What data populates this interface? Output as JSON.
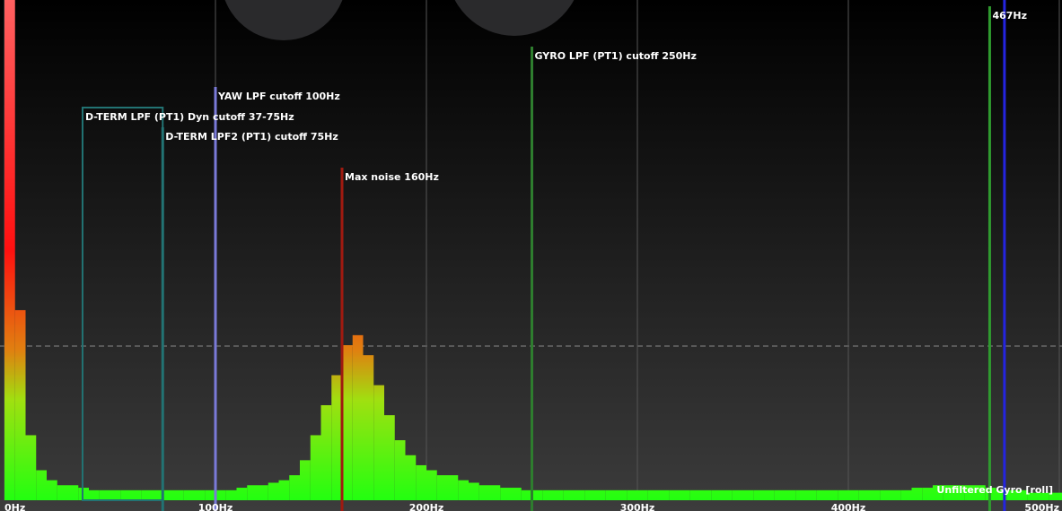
{
  "chart_data": {
    "type": "spectrum",
    "legend": "Unfiltered Gyro [roll]",
    "xlim": [
      0,
      500
    ],
    "ylim": [
      0,
      100
    ],
    "xticks": [
      {
        "value": 0,
        "label": "0Hz"
      },
      {
        "value": 100,
        "label": "100Hz"
      },
      {
        "value": 200,
        "label": "200Hz"
      },
      {
        "value": 300,
        "label": "300Hz"
      },
      {
        "value": 400,
        "label": "400Hz"
      },
      {
        "value": 500,
        "label": "500Hz"
      }
    ],
    "x": [
      0,
      5,
      10,
      15,
      20,
      25,
      30,
      35,
      40,
      45,
      50,
      55,
      60,
      65,
      70,
      75,
      80,
      85,
      90,
      95,
      100,
      105,
      110,
      115,
      120,
      125,
      130,
      135,
      140,
      145,
      150,
      155,
      160,
      165,
      170,
      175,
      180,
      185,
      190,
      195,
      200,
      205,
      210,
      215,
      220,
      225,
      230,
      235,
      240,
      245,
      250,
      255,
      260,
      265,
      270,
      275,
      280,
      285,
      290,
      295,
      300,
      305,
      310,
      315,
      320,
      325,
      330,
      335,
      340,
      345,
      350,
      355,
      360,
      365,
      370,
      375,
      380,
      385,
      390,
      395,
      400,
      405,
      410,
      415,
      420,
      425,
      430,
      435,
      440,
      445,
      450,
      455,
      460,
      465,
      470,
      475,
      480,
      485,
      490,
      495,
      500
    ],
    "values": [
      100,
      38,
      13,
      6,
      4,
      3,
      3,
      2.5,
      2,
      2,
      2,
      2,
      2,
      2,
      2,
      2,
      2,
      2,
      2,
      2,
      2,
      2,
      2.5,
      3,
      3,
      3.5,
      4,
      5,
      8,
      13,
      19,
      25,
      31,
      33,
      29,
      23,
      17,
      12,
      9,
      7,
      6,
      5,
      5,
      4,
      3.5,
      3,
      3,
      2.5,
      2.5,
      2,
      2,
      2,
      2,
      2,
      2,
      2,
      2,
      2,
      2,
      2,
      2,
      2,
      2,
      2,
      2,
      2,
      2,
      2,
      2,
      2,
      2,
      2,
      2,
      2,
      2,
      2,
      2,
      2,
      2,
      2,
      2,
      2,
      2,
      2,
      2,
      2,
      2.5,
      2.5,
      3,
      3,
      3,
      3,
      3,
      2.5,
      2,
      2,
      2,
      1.5,
      1.5,
      1.5,
      1.5
    ],
    "markers": [
      {
        "label": "GYRO LPF (PT1) cutoff 250Hz",
        "x": 250,
        "color": "#2e7d2e"
      },
      {
        "label": "YAW LPF cutoff 100Hz",
        "x": 100,
        "color": "#7a7ad8"
      },
      {
        "label": "D-TERM LPF (PT1) Dyn cutoff 37-75Hz",
        "x": [
          37,
          75
        ],
        "color": "#227373"
      },
      {
        "label": "D-TERM LPF2 (PT1) cutoff 75Hz",
        "x": 75,
        "color": "#227373"
      },
      {
        "label": "Max noise 160Hz",
        "x": 160,
        "color": "#a01a10"
      },
      {
        "label": "467Hz",
        "x": 467,
        "color": "#2f9a2f"
      },
      {
        "x": 474,
        "color": "#2424e0"
      }
    ]
  }
}
